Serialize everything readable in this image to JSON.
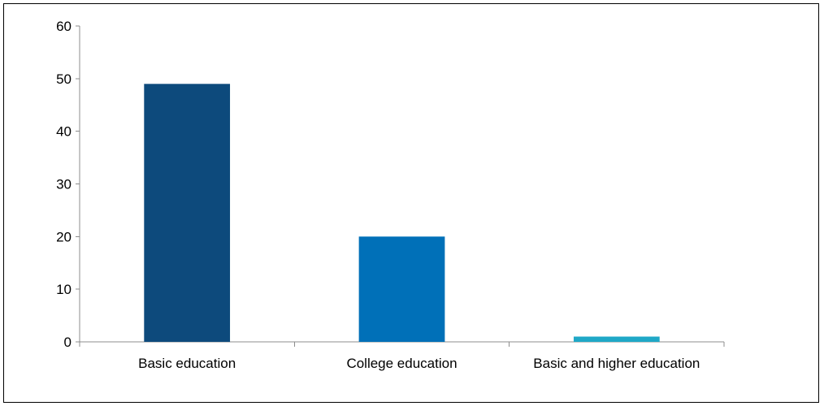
{
  "chart_data": {
    "type": "bar",
    "categories": [
      "Basic education",
      "College education",
      "Basic and higher education"
    ],
    "values": [
      49,
      20,
      1
    ],
    "colors": [
      "#0d4a7c",
      "#0070b8",
      "#1fa8c7"
    ],
    "title": "",
    "xlabel": "",
    "ylabel": "",
    "ylim": [
      0,
      60
    ],
    "yticks": [
      0,
      10,
      20,
      30,
      40,
      50,
      60
    ],
    "grid": false,
    "legend": "none"
  }
}
